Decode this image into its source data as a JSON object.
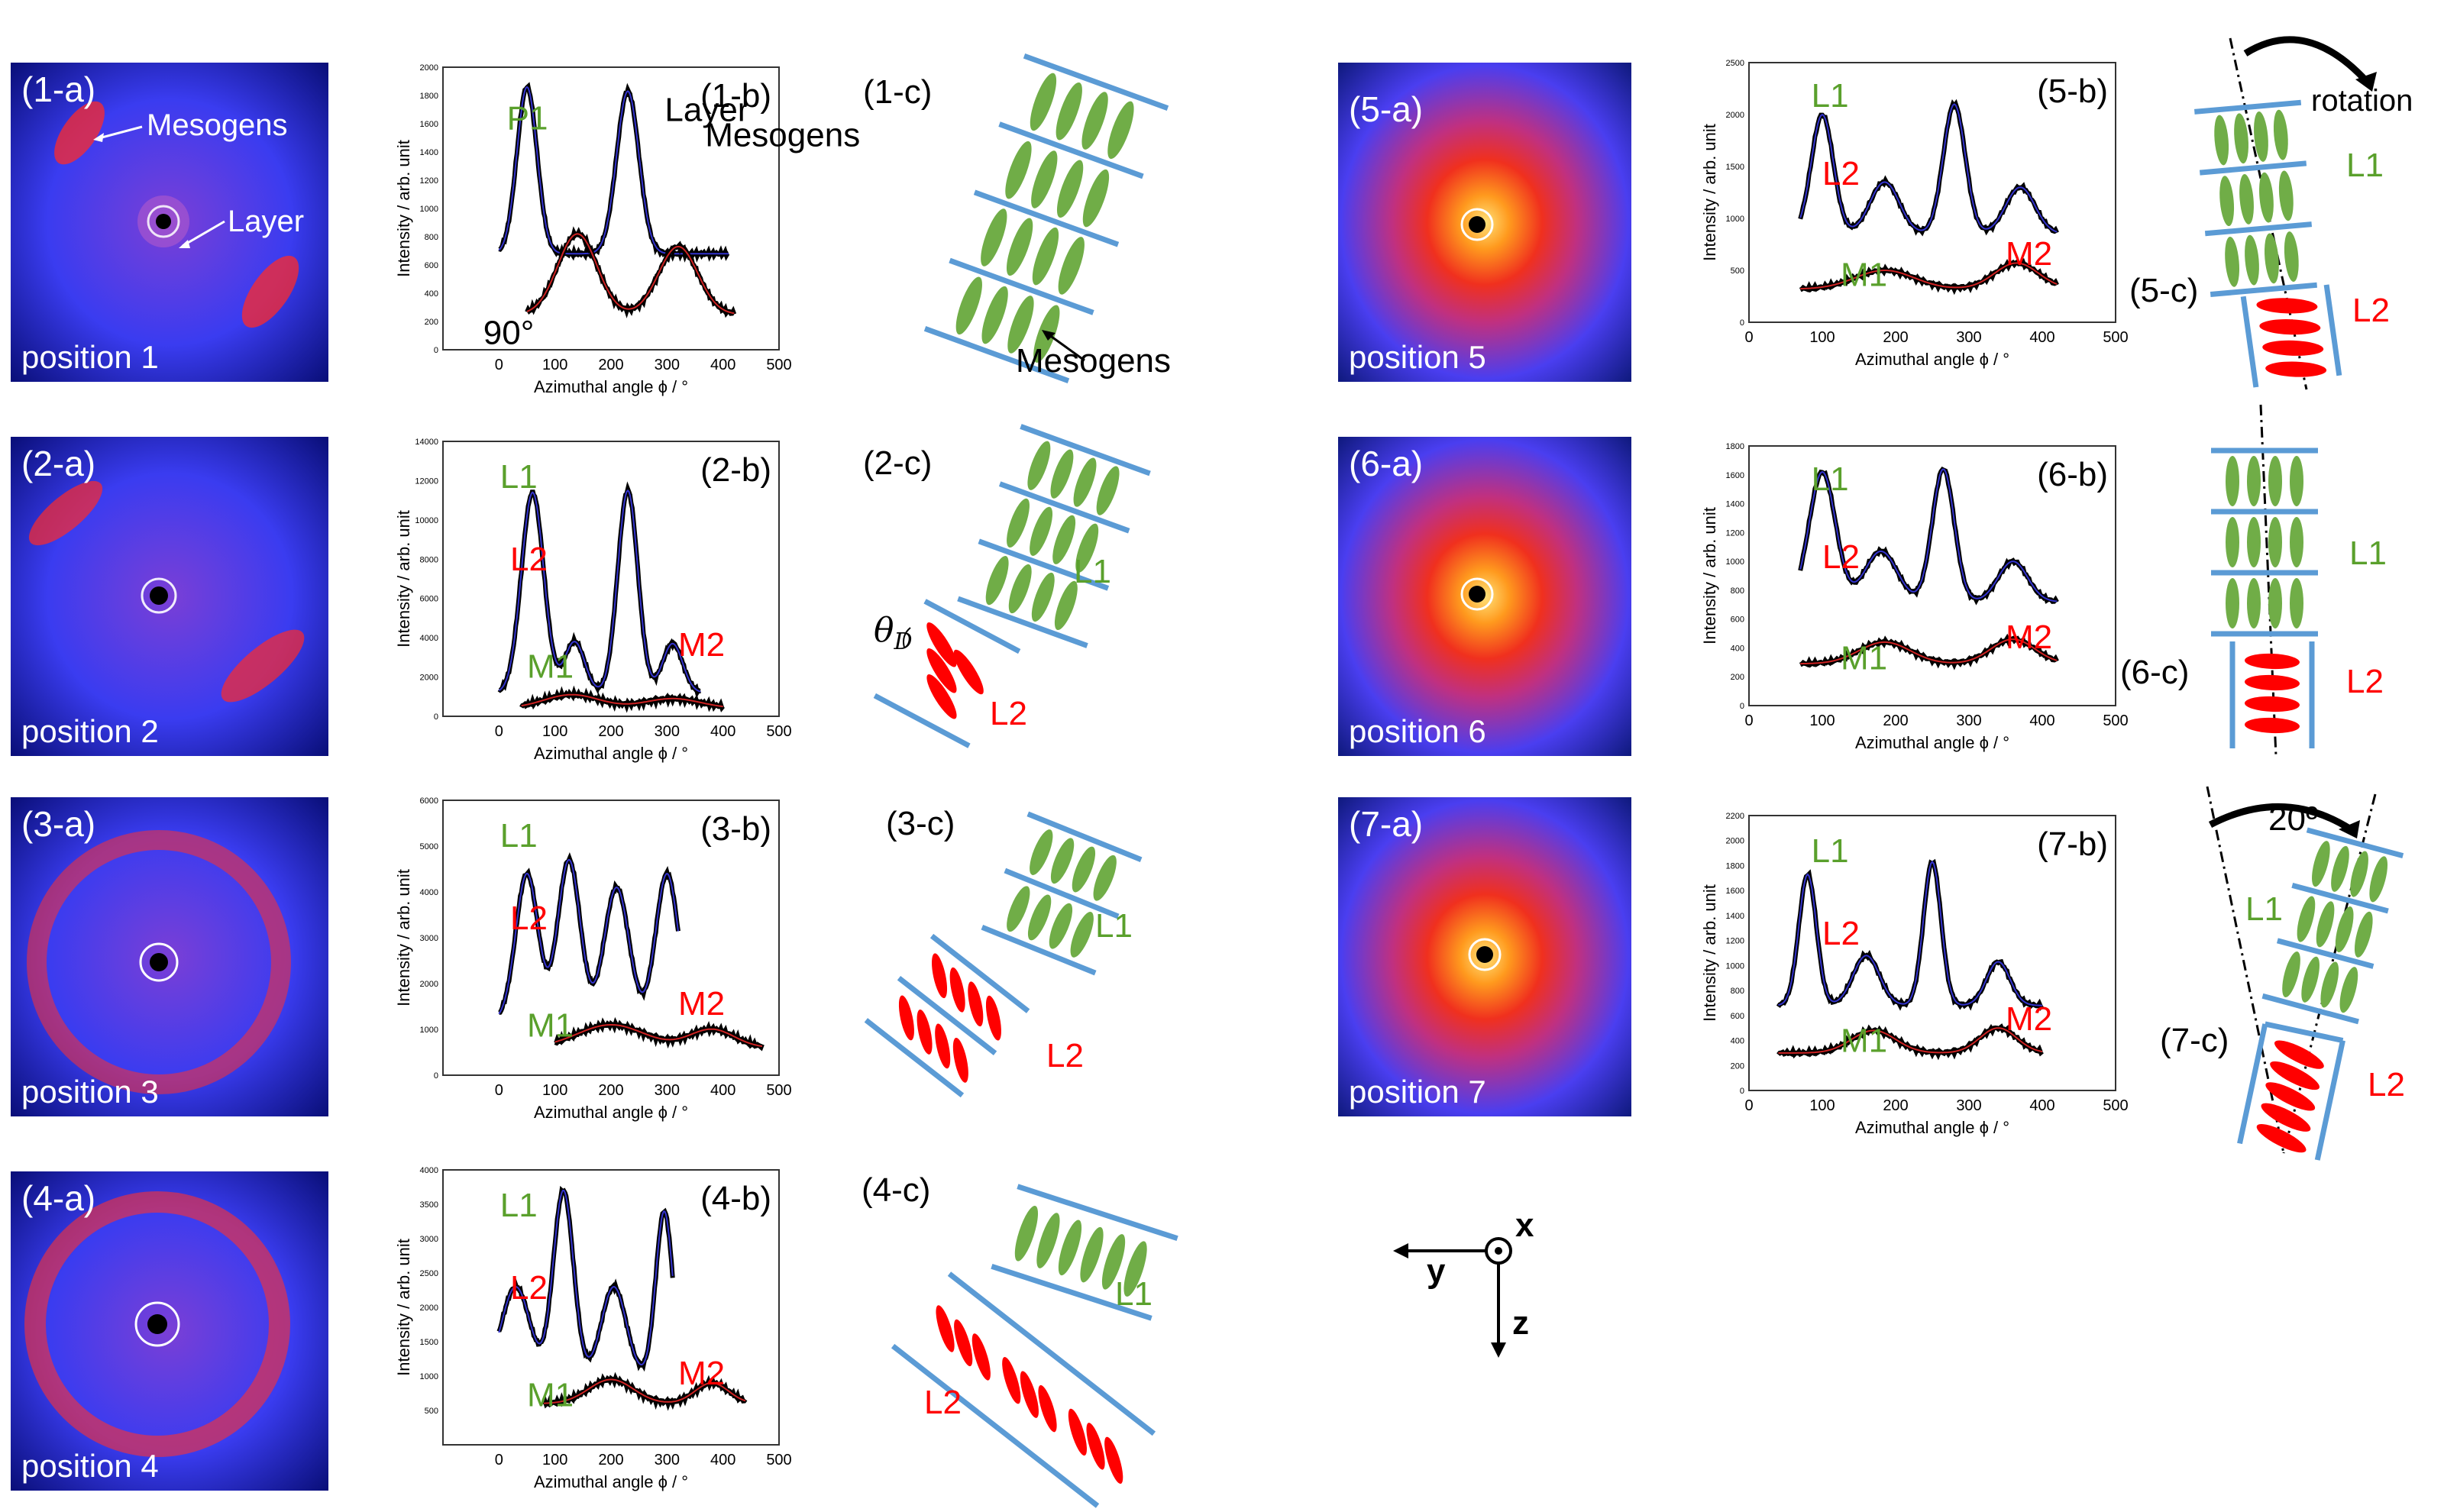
{
  "colors": {
    "layer_line": "#5b9bd5",
    "mesogen_green": "#70ad47",
    "mesogen_red": "#ff0000",
    "label_green": "#5aa02c",
    "label_red": "#ff0000",
    "fit_blue": "#3333cc",
    "fit_red": "#cc2222"
  },
  "panels": {
    "a": [
      {
        "label": "(1-a)",
        "position": "position 1",
        "mesogens": "Mesogens",
        "layer": "Layer"
      },
      {
        "label": "(2-a)",
        "position": "position 2"
      },
      {
        "label": "(3-a)",
        "position": "position 3"
      },
      {
        "label": "(4-a)",
        "position": "position 4"
      },
      {
        "label": "(5-a)",
        "position": "position 5"
      },
      {
        "label": "(6-a)",
        "position": "position 6"
      },
      {
        "label": "(7-a)",
        "position": "position 7"
      }
    ],
    "c": [
      {
        "label": "(1-c)",
        "mesogens": "Mesogens"
      },
      {
        "label": "(2-c)",
        "L1": "L1",
        "L2": "L2",
        "theta": "θ",
        "theta_sub": "D"
      },
      {
        "label": "(3-c)",
        "L1": "L1",
        "L2": "L2"
      },
      {
        "label": "(4-c)",
        "L1": "L1",
        "L2": "L2"
      },
      {
        "label": "(5-c)",
        "L1": "L1",
        "L2": "L2",
        "rotation": "rotation"
      },
      {
        "label": "(6-c)",
        "L1": "L1",
        "L2": "L2"
      },
      {
        "label": "(7-c)",
        "L1": "L1",
        "L2": "L2",
        "angle": "20º"
      }
    ]
  },
  "axes": {
    "xlabel": "Azimuthal angle ϕ / °",
    "ylabel": "Intensity / arb. unit"
  },
  "chart_data": [
    {
      "type": "line",
      "title": "(1-b)",
      "xlim": [
        -100,
        500
      ],
      "ylim": [
        0,
        2000
      ],
      "xticks": [
        0,
        100,
        200,
        300,
        400,
        500
      ],
      "yticks": [
        0,
        200,
        400,
        600,
        800,
        1000,
        1200,
        1400,
        1600,
        1800,
        2000
      ],
      "annotations": {
        "P1": "P1",
        "layer": "Layer",
        "mesogens": "Mesogens",
        "angle": "90°"
      },
      "series": [
        {
          "name": "Layer",
          "color": "blue",
          "x0": 0,
          "x1": 410,
          "baseline": 680,
          "peaks": [
            [
              50,
              1180,
              18
            ],
            [
              230,
              1150,
              20
            ]
          ]
        },
        {
          "name": "Mesogens",
          "color": "red",
          "x0": 50,
          "x1": 420,
          "baseline": 250,
          "peaks": [
            [
              140,
              570,
              35
            ],
            [
              320,
              480,
              35
            ]
          ]
        }
      ]
    },
    {
      "type": "line",
      "title": "(2-b)",
      "xlim": [
        -100,
        500
      ],
      "ylim": [
        0,
        14000
      ],
      "xticks": [
        0,
        100,
        200,
        300,
        400,
        500
      ],
      "yticks": [
        0,
        2000,
        4000,
        6000,
        8000,
        10000,
        12000,
        14000
      ],
      "annotations": {
        "L1": "L1",
        "L2": "L2",
        "M1": "M1",
        "M2": "M2"
      },
      "series": [
        {
          "name": "L",
          "color": "blue",
          "x0": 0,
          "x1": 360,
          "baseline": 1200,
          "peaks": [
            [
              60,
              10200,
              20
            ],
            [
              135,
              2600,
              18
            ],
            [
              230,
              10300,
              18
            ],
            [
              310,
              2500,
              18
            ]
          ]
        },
        {
          "name": "M",
          "color": "red",
          "x0": 40,
          "x1": 400,
          "baseline": 400,
          "peaks": [
            [
              130,
              700,
              50
            ],
            [
              310,
              500,
              50
            ]
          ]
        }
      ]
    },
    {
      "type": "line",
      "title": "(3-b)",
      "xlim": [
        -100,
        500
      ],
      "ylim": [
        0,
        6000
      ],
      "xticks": [
        0,
        100,
        200,
        300,
        400,
        500
      ],
      "yticks": [
        0,
        1000,
        2000,
        3000,
        4000,
        5000,
        6000
      ],
      "annotations": {
        "L1": "L1",
        "L2": "L2",
        "M1": "M1",
        "M2": "M2"
      },
      "series": [
        {
          "name": "L",
          "color": "blue",
          "x0": 0,
          "x1": 320,
          "baseline": 1200,
          "peaks": [
            [
              50,
              3200,
              20
            ],
            [
              125,
              3500,
              20
            ],
            [
              210,
              2900,
              22
            ],
            [
              300,
              3200,
              20
            ]
          ]
        },
        {
          "name": "M",
          "color": "red",
          "x0": 100,
          "x1": 470,
          "baseline": 600,
          "peaks": [
            [
              200,
              500,
              60
            ],
            [
              380,
              400,
              40
            ]
          ]
        }
      ]
    },
    {
      "type": "line",
      "title": "(4-b)",
      "xlim": [
        -100,
        500
      ],
      "ylim": [
        0,
        4000
      ],
      "xticks": [
        0,
        100,
        200,
        300,
        400,
        500
      ],
      "yticks": [
        500,
        1000,
        1500,
        2000,
        2500,
        3000,
        3500,
        4000
      ],
      "annotations": {
        "L1": "L1",
        "L2": "L2",
        "M1": "M1",
        "M2": "M2"
      },
      "series": [
        {
          "name": "L",
          "color": "blue",
          "x0": 0,
          "x1": 310,
          "baseline": 1000,
          "peaks": [
            [
              30,
              1300,
              25
            ],
            [
              115,
              2700,
              18
            ],
            [
              205,
              1300,
              22
            ],
            [
              295,
              2400,
              15
            ]
          ]
        },
        {
          "name": "M",
          "color": "red",
          "x0": 80,
          "x1": 440,
          "baseline": 600,
          "peaks": [
            [
              200,
              350,
              40
            ],
            [
              380,
              300,
              30
            ]
          ]
        }
      ]
    },
    {
      "type": "line",
      "title": "(5-b)",
      "xlim": [
        0,
        500
      ],
      "ylim": [
        0,
        2500
      ],
      "xticks": [
        0,
        100,
        200,
        300,
        400,
        500
      ],
      "yticks": [
        0,
        500,
        1000,
        1500,
        2000,
        2500
      ],
      "annotations": {
        "L1": "L1",
        "L2": "L2",
        "M1": "M1",
        "M2": "M2"
      },
      "series": [
        {
          "name": "L",
          "color": "blue",
          "x0": 70,
          "x1": 420,
          "baseline": 850,
          "peaks": [
            [
              100,
              1150,
              15
            ],
            [
              185,
              500,
              20
            ],
            [
              280,
              1250,
              15
            ],
            [
              370,
              450,
              20
            ]
          ]
        },
        {
          "name": "M",
          "color": "red",
          "x0": 70,
          "x1": 420,
          "baseline": 320,
          "peaks": [
            [
              185,
              180,
              40
            ],
            [
              365,
              250,
              30
            ]
          ]
        }
      ]
    },
    {
      "type": "line",
      "title": "(6-b)",
      "xlim": [
        0,
        500
      ],
      "ylim": [
        0,
        1800
      ],
      "xticks": [
        0,
        100,
        200,
        300,
        400,
        500
      ],
      "yticks": [
        0,
        200,
        400,
        600,
        800,
        1000,
        1200,
        1400,
        1600,
        1800
      ],
      "annotations": {
        "L1": "L1",
        "L2": "L2",
        "M1": "M1",
        "M2": "M2"
      },
      "series": [
        {
          "name": "L",
          "color": "blue",
          "x0": 70,
          "x1": 420,
          "baseline": 720,
          "peaks": [
            [
              100,
              900,
              18
            ],
            [
              180,
              350,
              22
            ],
            [
              265,
              920,
              15
            ],
            [
              360,
              280,
              20
            ]
          ]
        },
        {
          "name": "M",
          "color": "red",
          "x0": 70,
          "x1": 420,
          "baseline": 290,
          "peaks": [
            [
              185,
              150,
              35
            ],
            [
              360,
              170,
              30
            ]
          ]
        }
      ]
    },
    {
      "type": "line",
      "title": "(7-b)",
      "xlim": [
        0,
        500
      ],
      "ylim": [
        0,
        2200
      ],
      "xticks": [
        0,
        100,
        200,
        300,
        400,
        500
      ],
      "yticks": [
        0,
        200,
        400,
        600,
        800,
        1000,
        1200,
        1400,
        1600,
        1800,
        2000,
        2200
      ],
      "annotations": {
        "L1": "L1",
        "L2": "L2",
        "M1": "M1",
        "M2": "M2"
      },
      "series": [
        {
          "name": "L",
          "color": "blue",
          "x0": 40,
          "x1": 400,
          "baseline": 680,
          "peaks": [
            [
              80,
              1050,
              12
            ],
            [
              160,
              400,
              18
            ],
            [
              250,
              1150,
              12
            ],
            [
              340,
              350,
              16
            ]
          ]
        },
        {
          "name": "M",
          "color": "red",
          "x0": 40,
          "x1": 400,
          "baseline": 300,
          "peaks": [
            [
              170,
              180,
              30
            ],
            [
              340,
              200,
              25
            ]
          ]
        }
      ]
    }
  ],
  "axes_triad": {
    "x": "x",
    "y": "y",
    "z": "z"
  }
}
